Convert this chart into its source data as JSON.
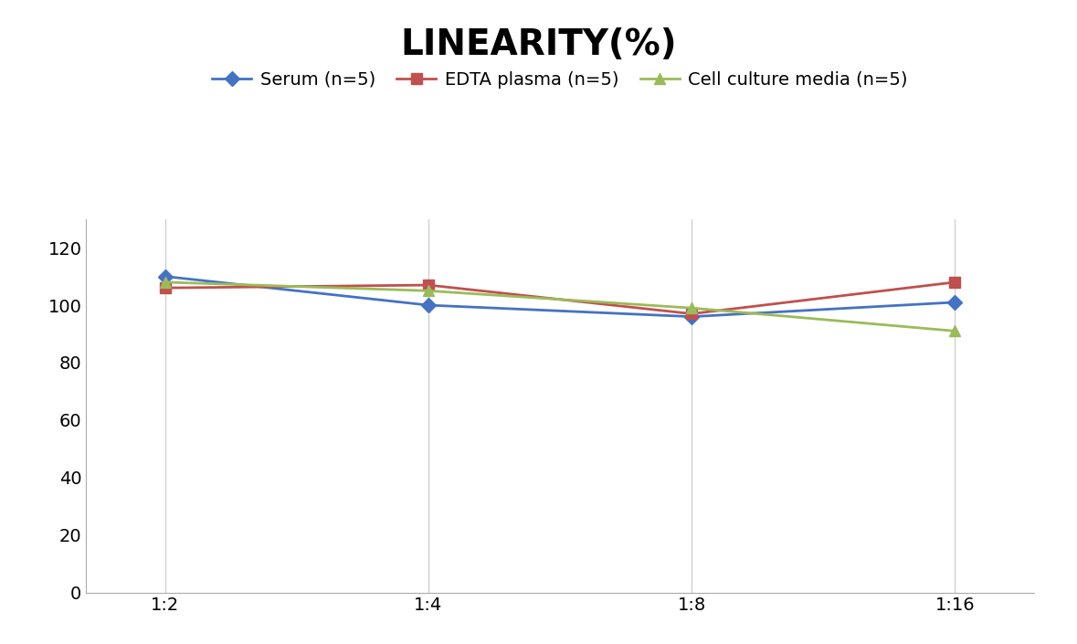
{
  "title": "LINEARITY(%)",
  "title_fontsize": 28,
  "title_fontweight": "bold",
  "x_labels": [
    "1:2",
    "1:4",
    "1:8",
    "1:16"
  ],
  "x_positions": [
    0,
    1,
    2,
    3
  ],
  "series": [
    {
      "label": "Serum (n=5)",
      "color": "#4472C4",
      "marker": "D",
      "markersize": 8,
      "linewidth": 2,
      "values": [
        110,
        100,
        96,
        101
      ]
    },
    {
      "label": "EDTA plasma (n=5)",
      "color": "#C0504D",
      "marker": "s",
      "markersize": 8,
      "linewidth": 2,
      "values": [
        106,
        107,
        97,
        108
      ]
    },
    {
      "label": "Cell culture media (n=5)",
      "color": "#9BBB59",
      "marker": "^",
      "markersize": 8,
      "linewidth": 2,
      "values": [
        108,
        105,
        99,
        91
      ]
    }
  ],
  "ylim": [
    0,
    130
  ],
  "yticks": [
    0,
    20,
    40,
    60,
    80,
    100,
    120
  ],
  "background_color": "#ffffff",
  "grid_color": "#d0d0d0",
  "legend_fontsize": 14,
  "tick_fontsize": 14
}
